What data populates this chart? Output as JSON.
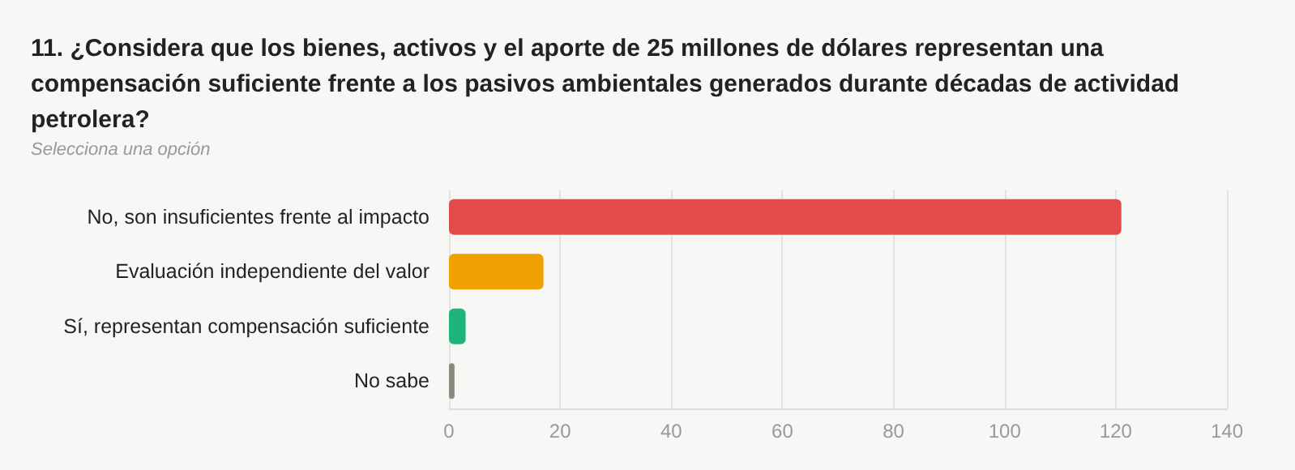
{
  "chart_data": {
    "type": "bar",
    "orientation": "horizontal",
    "title": "11. ¿Considera que los bienes, activos y el aporte de 25 millones de dólares representan una compensación suficiente frente a los pasivos ambientales generados durante décadas de actividad petrolera?",
    "subtitle": "Selecciona una opción",
    "categories": [
      "No, son insuficientes frente al impacto",
      "Evaluación independiente del valor",
      "Sí, representan compensación suficiente",
      "No sabe"
    ],
    "values": [
      121,
      17,
      3,
      1
    ],
    "colors": [
      "#e34a4a",
      "#f0a000",
      "#1db57a",
      "#8a8a80"
    ],
    "xlim": [
      0,
      140
    ],
    "xticks": [
      0,
      20,
      40,
      60,
      80,
      100,
      120,
      140
    ],
    "grid": "x"
  }
}
